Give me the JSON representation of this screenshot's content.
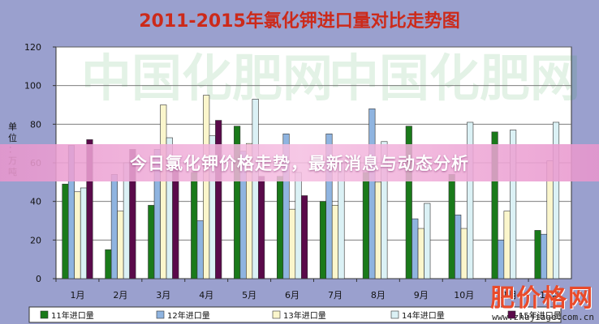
{
  "chart_data": {
    "type": "bar",
    "title": "2011-2015年氯化钾进口量对比走势图",
    "ylabel": "单位：万吨",
    "ylim": [
      0,
      120
    ],
    "yticks": [
      0,
      20,
      40,
      60,
      80,
      100,
      120
    ],
    "grid": true,
    "legend_position": "bottom",
    "categories": [
      "1月",
      "2月",
      "3月",
      "4月",
      "5月",
      "6月",
      "7月",
      "8月",
      "9月",
      "10月",
      "11月",
      "12月"
    ],
    "series": [
      {
        "name": "11年进口量",
        "color": "#1a7a1a",
        "values": [
          49,
          15,
          38,
          55,
          79,
          53,
          40,
          55,
          79,
          54,
          76,
          25
        ]
      },
      {
        "name": "12年进口量",
        "color": "#8fb4e0",
        "values": [
          69,
          54,
          67,
          30,
          66,
          75,
          75,
          88,
          31,
          33,
          20,
          23
        ]
      },
      {
        "name": "13年进口量",
        "color": "#fbf6cc",
        "values": [
          45,
          35,
          90,
          95,
          70,
          36,
          38,
          50,
          26,
          26,
          35,
          61
        ]
      },
      {
        "name": "14年进口量",
        "color": "#dbf1f5",
        "values": [
          47,
          60,
          73,
          74,
          93,
          55,
          60,
          71,
          39,
          81,
          77,
          81
        ]
      },
      {
        "name": "15年进口量",
        "color": "#5a0a4a",
        "values": [
          72,
          67,
          58,
          82,
          53,
          43,
          null,
          null,
          null,
          null,
          null,
          null
        ]
      }
    ]
  },
  "banner": {
    "text": "今日氯化钾价格走势，最新消息与动态分析"
  },
  "watermark": {
    "logo": "肥价格网",
    "url": "www.zhujiage.com.cn"
  }
}
